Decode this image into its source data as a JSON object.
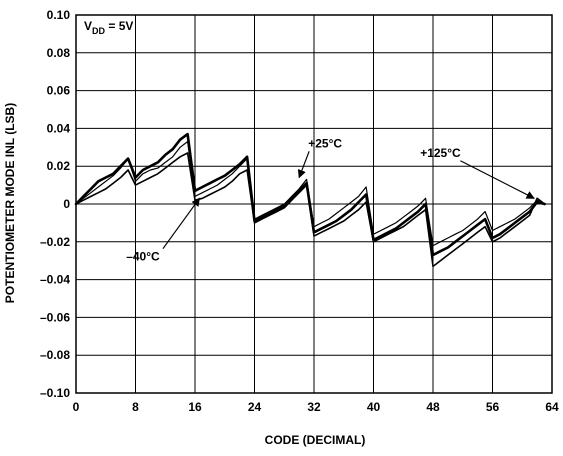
{
  "chart_data": {
    "type": "line",
    "xlabel": "CODE (DECIMAL)",
    "ylabel": "POTENTIOMETER MODE INL (LSB)",
    "xlim": [
      0,
      64
    ],
    "ylim": [
      -0.1,
      0.1
    ],
    "x_ticks": [
      0,
      8,
      16,
      24,
      32,
      40,
      48,
      56,
      64
    ],
    "x_tick_labels": [
      "0",
      "8",
      "16",
      "24",
      "32",
      "40",
      "48",
      "56",
      "64"
    ],
    "y_ticks": [
      0.1,
      0.08,
      0.06,
      0.04,
      0.02,
      0,
      -0.02,
      -0.04,
      -0.06,
      -0.08,
      -0.1
    ],
    "y_tick_labels": [
      "0.10",
      "0.08",
      "0.06",
      "0.04",
      "0.02",
      "0",
      "–0.02",
      "–0.04",
      "–0.06",
      "–0.08",
      "–0.10"
    ],
    "grid": true,
    "condition": {
      "text": "V",
      "sub": "DD",
      "rest": " = 5V"
    },
    "series": [
      {
        "name": "+25°C",
        "x": [
          0,
          1,
          2,
          3,
          4,
          5,
          6,
          7,
          8,
          9,
          10,
          11,
          12,
          13,
          14,
          15,
          16,
          17,
          18,
          19,
          20,
          21,
          22,
          23,
          24,
          25,
          26,
          27,
          28,
          29,
          30,
          31,
          32,
          33,
          34,
          35,
          36,
          37,
          38,
          39,
          40,
          41,
          42,
          43,
          44,
          45,
          46,
          47,
          48,
          49,
          50,
          51,
          52,
          53,
          54,
          55,
          56,
          57,
          58,
          59,
          60,
          61,
          62,
          63
        ],
        "y": [
          0.0,
          0.003,
          0.006,
          0.009,
          0.012,
          0.015,
          0.019,
          0.024,
          0.012,
          0.016,
          0.018,
          0.019,
          0.022,
          0.025,
          0.03,
          0.033,
          0.004,
          0.006,
          0.008,
          0.01,
          0.013,
          0.016,
          0.02,
          0.024,
          -0.008,
          -0.006,
          -0.004,
          -0.002,
          0.0,
          0.004,
          0.008,
          0.013,
          -0.012,
          -0.01,
          -0.008,
          -0.005,
          -0.002,
          0.001,
          0.004,
          0.009,
          -0.016,
          -0.014,
          -0.012,
          -0.01,
          -0.007,
          -0.004,
          -0.001,
          0.003,
          -0.022,
          -0.02,
          -0.018,
          -0.016,
          -0.014,
          -0.011,
          -0.008,
          -0.004,
          -0.014,
          -0.012,
          -0.01,
          -0.008,
          -0.005,
          -0.002,
          0.002,
          0.0
        ],
        "stroke_width": 1.2
      },
      {
        "name": "–40°C",
        "x": [
          0,
          1,
          2,
          3,
          4,
          5,
          6,
          7,
          8,
          9,
          10,
          11,
          12,
          13,
          14,
          15,
          16,
          17,
          18,
          19,
          20,
          21,
          22,
          23,
          24,
          25,
          26,
          27,
          28,
          29,
          30,
          31,
          32,
          33,
          34,
          35,
          36,
          37,
          38,
          39,
          40,
          41,
          42,
          43,
          44,
          45,
          46,
          47,
          48,
          49,
          50,
          51,
          52,
          53,
          54,
          55,
          56,
          57,
          58,
          59,
          60,
          61,
          62,
          63
        ],
        "y": [
          0.0,
          0.004,
          0.008,
          0.012,
          0.014,
          0.016,
          0.02,
          0.024,
          0.014,
          0.018,
          0.02,
          0.022,
          0.026,
          0.029,
          0.034,
          0.037,
          0.007,
          0.009,
          0.011,
          0.013,
          0.015,
          0.018,
          0.021,
          0.025,
          -0.009,
          -0.007,
          -0.005,
          -0.003,
          -0.001,
          0.003,
          0.007,
          0.011,
          -0.015,
          -0.013,
          -0.011,
          -0.009,
          -0.006,
          -0.003,
          0.001,
          0.005,
          -0.019,
          -0.017,
          -0.015,
          -0.013,
          -0.01,
          -0.007,
          -0.004,
          0.0,
          -0.027,
          -0.025,
          -0.023,
          -0.02,
          -0.017,
          -0.014,
          -0.011,
          -0.008,
          -0.018,
          -0.016,
          -0.013,
          -0.01,
          -0.007,
          -0.004,
          0.001,
          0.0
        ],
        "stroke_width": 2.6
      },
      {
        "name": "+125°C",
        "x": [
          0,
          1,
          2,
          3,
          4,
          5,
          6,
          7,
          8,
          9,
          10,
          11,
          12,
          13,
          14,
          15,
          16,
          17,
          18,
          19,
          20,
          21,
          22,
          23,
          24,
          25,
          26,
          27,
          28,
          29,
          30,
          31,
          32,
          33,
          34,
          35,
          36,
          37,
          38,
          39,
          40,
          41,
          42,
          43,
          44,
          45,
          46,
          47,
          48,
          49,
          50,
          51,
          52,
          53,
          54,
          55,
          56,
          57,
          58,
          59,
          60,
          61,
          62,
          63
        ],
        "y": [
          0.0,
          0.002,
          0.004,
          0.006,
          0.008,
          0.011,
          0.014,
          0.018,
          0.01,
          0.012,
          0.014,
          0.016,
          0.019,
          0.022,
          0.025,
          0.027,
          0.002,
          0.003,
          0.005,
          0.007,
          0.009,
          0.012,
          0.016,
          0.018,
          -0.01,
          -0.008,
          -0.006,
          -0.004,
          -0.002,
          0.002,
          0.006,
          0.01,
          -0.017,
          -0.015,
          -0.013,
          -0.011,
          -0.009,
          -0.006,
          -0.003,
          0.001,
          -0.02,
          -0.018,
          -0.016,
          -0.014,
          -0.012,
          -0.009,
          -0.006,
          -0.003,
          -0.033,
          -0.03,
          -0.027,
          -0.024,
          -0.021,
          -0.018,
          -0.015,
          -0.012,
          -0.02,
          -0.018,
          -0.015,
          -0.012,
          -0.009,
          -0.006,
          0.003,
          0.0
        ],
        "stroke_width": 1.6
      }
    ],
    "annotations": [
      {
        "text": "+25°C",
        "pos": [
          33.5,
          0.03
        ],
        "arrow_to": [
          30.0,
          0.014
        ]
      },
      {
        "text": "–40°C",
        "pos": [
          9.0,
          -0.03
        ],
        "arrow_to": [
          16.6,
          0.003
        ]
      },
      {
        "text": "+125°C",
        "pos": [
          49.0,
          0.025
        ],
        "arrow_to": [
          61.6,
          0.003
        ]
      }
    ]
  }
}
